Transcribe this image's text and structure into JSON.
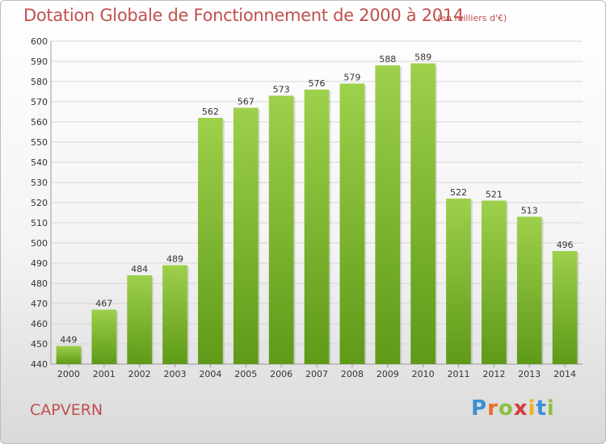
{
  "header": {
    "title": "Dotation Globale de Fonctionnement de 2000 à 2014",
    "subtitle": "(en milliers d'€)"
  },
  "footer": {
    "town": "CAPVERN",
    "logo_letters": [
      "P",
      "r",
      "o",
      "x",
      "i",
      "t",
      "i"
    ]
  },
  "chart_data": {
    "type": "bar",
    "title": "Dotation Globale de Fonctionnement de 2000 à 2014",
    "subtitle": "(en milliers d'€)",
    "categories": [
      "2000",
      "2001",
      "2002",
      "2003",
      "2004",
      "2005",
      "2006",
      "2007",
      "2008",
      "2009",
      "2010",
      "2011",
      "2012",
      "2013",
      "2014"
    ],
    "values": [
      449,
      467,
      484,
      489,
      562,
      567,
      573,
      576,
      579,
      588,
      589,
      522,
      521,
      513,
      496
    ],
    "ylim": [
      440,
      600
    ],
    "ytick_step": 10,
    "grid": true,
    "colors": {
      "bar_top": "#9ed04b",
      "bar_bottom": "#5e9a18",
      "title": "#c0504d"
    }
  }
}
